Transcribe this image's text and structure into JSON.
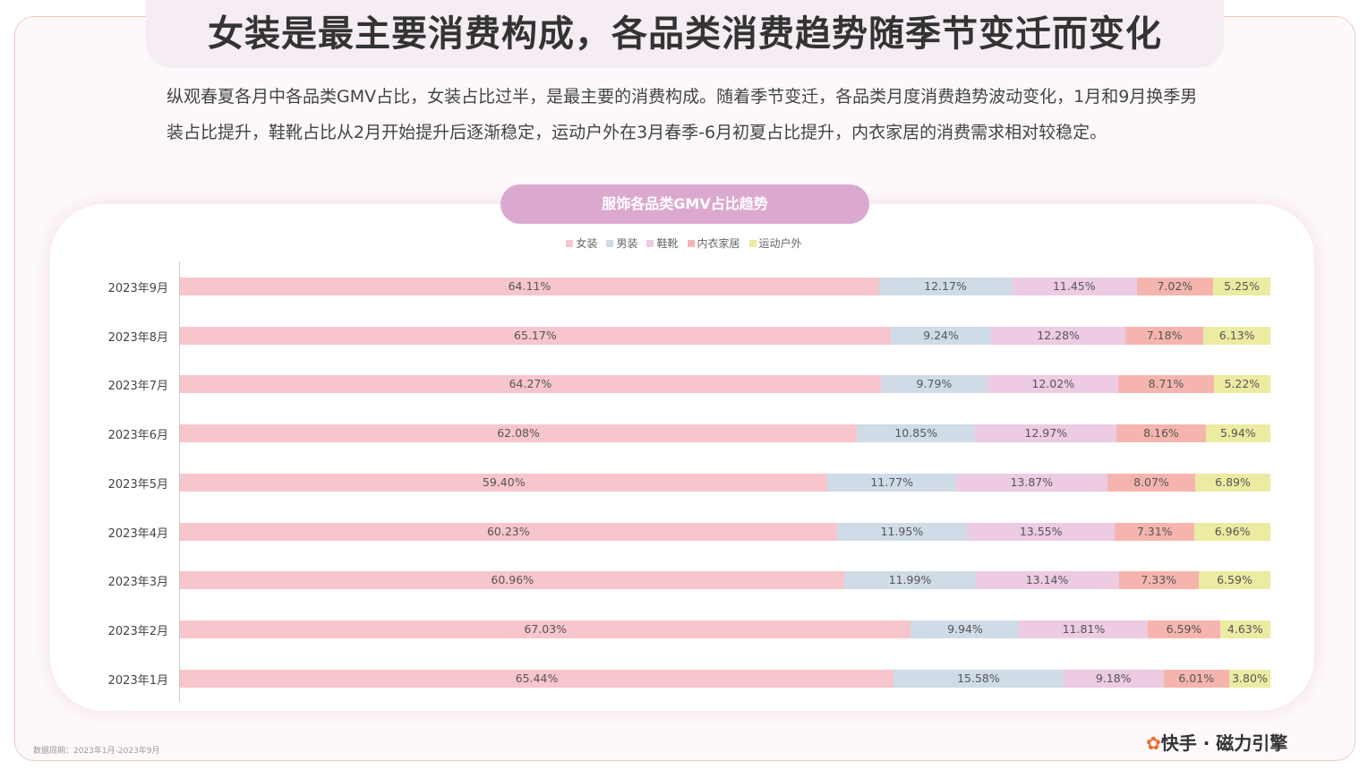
{
  "header": {
    "title": "女装是最主要消费构成，各品类消费趋势随季节变迁而变化",
    "description": "纵观春夏各月中各品类GMV占比，女装占比过半，是最主要的消费构成。随着季节变迁，各品类月度消费趋势波动变化，1月和9月换季男装占比提升，鞋靴占比从2月开始提升后逐渐稳定，运动户外在3月春季-6月初夏占比提升，内衣家居的消费需求相对较稳定。"
  },
  "chart_data": {
    "type": "bar",
    "orientation": "horizontal",
    "stacked": true,
    "title": "服饰各品类GMV占比趋势",
    "legend_position": "top",
    "categories": [
      "2023年9月",
      "2023年8月",
      "2023年7月",
      "2023年6月",
      "2023年5月",
      "2023年4月",
      "2023年3月",
      "2023年2月",
      "2023年1月"
    ],
    "series": [
      {
        "name": "女装",
        "color": "#f7c5cc",
        "values": [
          64.11,
          65.17,
          64.27,
          62.08,
          59.4,
          60.23,
          60.96,
          67.03,
          65.44
        ]
      },
      {
        "name": "男装",
        "color": "#cfdce7",
        "values": [
          12.17,
          9.24,
          9.79,
          10.85,
          11.77,
          11.95,
          11.99,
          9.94,
          15.58
        ]
      },
      {
        "name": "鞋靴",
        "color": "#eccbe3",
        "values": [
          11.45,
          12.28,
          12.02,
          12.97,
          13.87,
          13.55,
          13.14,
          11.81,
          9.18
        ]
      },
      {
        "name": "内衣家居",
        "color": "#f5b5ae",
        "values": [
          7.02,
          7.18,
          8.71,
          8.16,
          8.07,
          7.31,
          7.33,
          6.59,
          6.01
        ]
      },
      {
        "name": "运动户外",
        "color": "#ecebA2",
        "values": [
          5.25,
          6.13,
          5.22,
          5.94,
          6.89,
          6.96,
          6.59,
          4.63,
          3.8
        ]
      }
    ],
    "xlim": [
      0,
      100
    ]
  },
  "footer": {
    "source": "数据周期：2023年1月-2023年9月",
    "logo": "快手 · 磁力引擎"
  }
}
